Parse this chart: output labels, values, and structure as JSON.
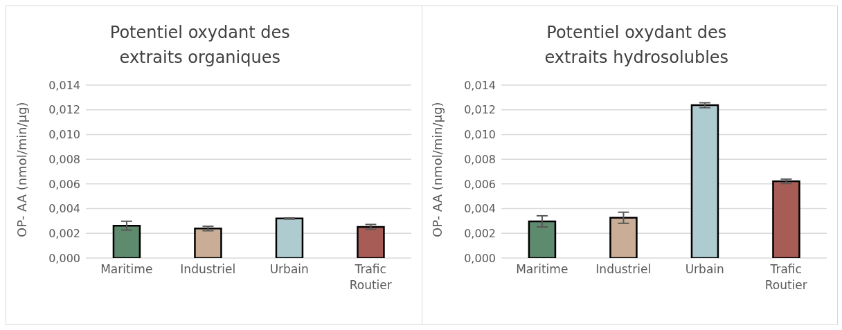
{
  "chart_data": [
    {
      "type": "bar",
      "title": "Potentiel oxydant des extraits organiques",
      "ylabel": "OP- AA (nmol/min/µg)",
      "categories": [
        "Maritime",
        "Industriel",
        "Urbain",
        "Trafic Routier"
      ],
      "values": [
        0.00262,
        0.00239,
        0.0032,
        0.00252
      ],
      "errors": [
        0.00036,
        0.00018,
        5e-05,
        0.0002
      ],
      "colors": [
        "#5e8a6e",
        "#c9ad96",
        "#aecbd0",
        "#a85c56"
      ],
      "ylim": [
        0,
        0.014
      ],
      "yticks": [
        {
          "value": 0,
          "label": "0,000"
        },
        {
          "value": 0.002,
          "label": "0,002"
        },
        {
          "value": 0.004,
          "label": "0,004"
        },
        {
          "value": 0.006,
          "label": "0,006"
        },
        {
          "value": 0.008,
          "label": "0,008"
        },
        {
          "value": 0.01,
          "label": "0,010"
        },
        {
          "value": 0.012,
          "label": "0,012"
        },
        {
          "value": 0.014,
          "label": "0,014"
        }
      ],
      "grid": "y",
      "legend": false
    },
    {
      "type": "bar",
      "title": "Potentiel oxydant des extraits hydrosolubles",
      "ylabel": "OP- AA (nmol/min/µg)",
      "categories": [
        "Maritime",
        "Industriel",
        "Urbain",
        "Trafic Routier"
      ],
      "values": [
        0.00297,
        0.00326,
        0.01237,
        0.00621
      ],
      "errors": [
        0.00045,
        0.00045,
        0.0002,
        0.00018
      ],
      "colors": [
        "#5e8a6e",
        "#c9ad96",
        "#aecbd0",
        "#a85c56"
      ],
      "ylim": [
        0,
        0.014
      ],
      "yticks": [
        {
          "value": 0,
          "label": "0,000"
        },
        {
          "value": 0.002,
          "label": "0,002"
        },
        {
          "value": 0.004,
          "label": "0,004"
        },
        {
          "value": 0.006,
          "label": "0,006"
        },
        {
          "value": 0.008,
          "label": "0,008"
        },
        {
          "value": 0.01,
          "label": "0,010"
        },
        {
          "value": 0.012,
          "label": "0,012"
        },
        {
          "value": 0.014,
          "label": "0,014"
        }
      ],
      "grid": "y",
      "legend": false
    }
  ]
}
